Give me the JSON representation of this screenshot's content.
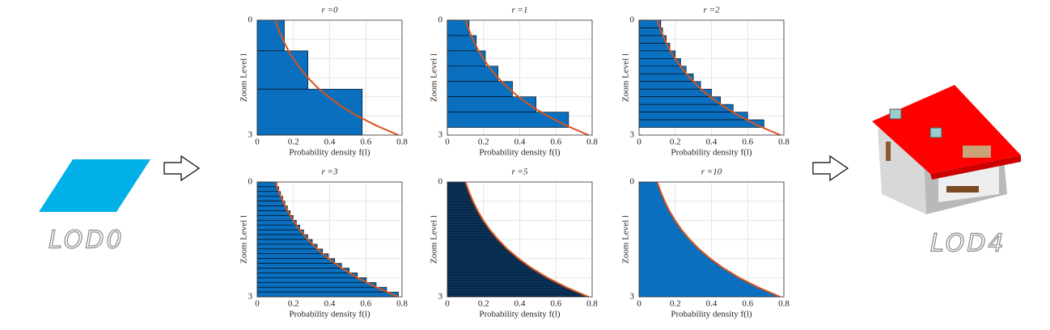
{
  "lod_start": "LOD0",
  "lod_end": "LOD4",
  "chart_data": [
    {
      "type": "bar",
      "title": "r =0",
      "xlabel": "Probability density f(l)",
      "ylabel": "Zoom Level l",
      "color": "#0a6fbf",
      "curve_color": "#d95319",
      "xlim": [
        0,
        0.8
      ],
      "xticks": [
        0,
        0.2,
        0.4,
        0.6,
        0.8
      ],
      "ylim": [
        0,
        3
      ],
      "yticks": [
        0,
        3
      ],
      "grid": true,
      "edges": [
        0,
        0.8,
        1.8,
        3
      ],
      "values": [
        0.15,
        0.28,
        0.58
      ],
      "curve": {
        "level": [
          0,
          0.25,
          0.5,
          0.75,
          1,
          1.25,
          1.5,
          1.75,
          2,
          2.25,
          2.5,
          2.75,
          3
        ],
        "density": [
          0.1,
          0.119,
          0.141,
          0.167,
          0.198,
          0.235,
          0.279,
          0.331,
          0.393,
          0.466,
          0.553,
          0.657,
          0.78
        ]
      }
    },
    {
      "type": "bar",
      "title": "r =1",
      "xlabel": "Probability density f(l)",
      "ylabel": "Zoom Level l",
      "color": "#0a6fbf",
      "curve_color": "#d95319",
      "xlim": [
        0,
        0.8
      ],
      "xticks": [
        0,
        0.2,
        0.4,
        0.6,
        0.8
      ],
      "ylim": [
        0,
        3
      ],
      "yticks": [
        0,
        3
      ],
      "grid": true,
      "edges": [
        0,
        0.4,
        0.8,
        1.2,
        1.6,
        2,
        2.4,
        2.8
      ],
      "values": [
        0.12,
        0.16,
        0.21,
        0.28,
        0.36,
        0.49,
        0.67
      ],
      "curve": {
        "level": [
          0,
          0.25,
          0.5,
          0.75,
          1,
          1.25,
          1.5,
          1.75,
          2,
          2.25,
          2.5,
          2.75,
          3
        ],
        "density": [
          0.1,
          0.119,
          0.141,
          0.167,
          0.198,
          0.235,
          0.279,
          0.331,
          0.393,
          0.466,
          0.553,
          0.657,
          0.78
        ]
      }
    },
    {
      "type": "bar",
      "title": "r =2",
      "xlabel": "Probability density f(l)",
      "ylabel": "Zoom Level l",
      "color": "#0a6fbf",
      "curve_color": "#d95319",
      "xlim": [
        0,
        0.8
      ],
      "xticks": [
        0,
        0.2,
        0.4,
        0.6,
        0.8
      ],
      "ylim": [
        0,
        3
      ],
      "yticks": [
        0,
        3
      ],
      "grid": true,
      "edges": [
        0,
        0.2,
        0.4,
        0.6,
        0.8,
        1,
        1.2,
        1.4,
        1.6,
        1.8,
        2,
        2.2,
        2.4,
        2.6,
        2.8
      ],
      "values": [
        0.12,
        0.13,
        0.15,
        0.17,
        0.2,
        0.23,
        0.26,
        0.3,
        0.34,
        0.4,
        0.45,
        0.52,
        0.6,
        0.69
      ],
      "curve": {
        "level": [
          0,
          0.25,
          0.5,
          0.75,
          1,
          1.25,
          1.5,
          1.75,
          2,
          2.25,
          2.5,
          2.75,
          3
        ],
        "density": [
          0.1,
          0.119,
          0.141,
          0.167,
          0.198,
          0.235,
          0.279,
          0.331,
          0.393,
          0.466,
          0.553,
          0.657,
          0.78
        ]
      }
    },
    {
      "type": "bar",
      "title": "r =3",
      "xlabel": "Probability density f(l)",
      "ylabel": "Zoom Level l",
      "color": "#0a6fbf",
      "curve_color": "#d95319",
      "xlim": [
        0,
        0.8
      ],
      "xticks": [
        0,
        0.2,
        0.4,
        0.6,
        0.8
      ],
      "ylim": [
        0,
        3
      ],
      "yticks": [
        0,
        3
      ],
      "grid": true,
      "edges": [
        0,
        0.125,
        0.25,
        0.375,
        0.5,
        0.625,
        0.75,
        0.875,
        1,
        1.125,
        1.25,
        1.375,
        1.5,
        1.625,
        1.75,
        1.875,
        2,
        2.125,
        2.25,
        2.375,
        2.5,
        2.625,
        2.75,
        2.875,
        3
      ],
      "values": [
        0.109,
        0.119,
        0.129,
        0.141,
        0.153,
        0.167,
        0.182,
        0.198,
        0.216,
        0.235,
        0.256,
        0.279,
        0.304,
        0.331,
        0.361,
        0.393,
        0.428,
        0.466,
        0.508,
        0.553,
        0.603,
        0.657,
        0.715,
        0.78
      ],
      "curve": {
        "level": [
          0,
          0.25,
          0.5,
          0.75,
          1,
          1.25,
          1.5,
          1.75,
          2,
          2.25,
          2.5,
          2.75,
          3
        ],
        "density": [
          0.1,
          0.119,
          0.141,
          0.167,
          0.198,
          0.235,
          0.279,
          0.331,
          0.393,
          0.466,
          0.553,
          0.657,
          0.78
        ]
      }
    },
    {
      "type": "area",
      "title": "r =5",
      "xlabel": "Probability density f(l)",
      "ylabel": "Zoom Level l",
      "color": "#0b3a66",
      "curve_color": "#d95319",
      "xlim": [
        0,
        0.8
      ],
      "xticks": [
        0,
        0.2,
        0.4,
        0.6,
        0.8
      ],
      "ylim": [
        0,
        3
      ],
      "yticks": [
        0,
        3
      ],
      "grid": true,
      "curve": {
        "level": [
          0,
          0.25,
          0.5,
          0.75,
          1,
          1.25,
          1.5,
          1.75,
          2,
          2.25,
          2.5,
          2.75,
          3
        ],
        "density": [
          0.1,
          0.119,
          0.141,
          0.167,
          0.198,
          0.235,
          0.279,
          0.331,
          0.393,
          0.466,
          0.553,
          0.657,
          0.78
        ]
      }
    },
    {
      "type": "area",
      "title": "r =10",
      "xlabel": "Probability density f(l)",
      "ylabel": "Zoom Level l",
      "color": "#0a6fbf",
      "curve_color": "#d95319",
      "xlim": [
        0,
        0.8
      ],
      "xticks": [
        0,
        0.2,
        0.4,
        0.6,
        0.8
      ],
      "ylim": [
        0,
        3
      ],
      "yticks": [
        0,
        3
      ],
      "grid": true,
      "curve": {
        "level": [
          0,
          0.25,
          0.5,
          0.75,
          1,
          1.25,
          1.5,
          1.75,
          2,
          2.25,
          2.5,
          2.75,
          3
        ],
        "density": [
          0.1,
          0.119,
          0.141,
          0.167,
          0.198,
          0.235,
          0.279,
          0.331,
          0.393,
          0.466,
          0.553,
          0.657,
          0.78
        ]
      }
    }
  ]
}
